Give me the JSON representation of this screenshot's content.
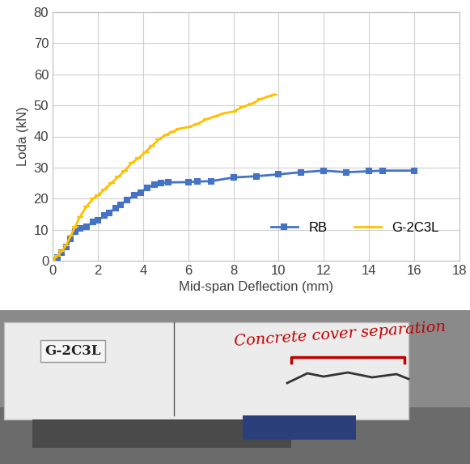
{
  "chart_data": {
    "type": "line",
    "x_label": "Mid-span Deflection (mm)",
    "y_label": "Loda (kN)",
    "xlim": [
      0,
      18
    ],
    "xticks": [
      0,
      2,
      4,
      6,
      8,
      10,
      12,
      14,
      16,
      18
    ],
    "ylim": [
      0,
      80
    ],
    "yticks": [
      0,
      10,
      20,
      30,
      40,
      50,
      60,
      70,
      80
    ],
    "grid": true,
    "legend": "lower right",
    "series": [
      {
        "name": "RB",
        "color": "#4472c4",
        "marker": "square",
        "line_style": "solid",
        "x": [
          0,
          0.2,
          0.4,
          0.6,
          0.8,
          1.0,
          1.2,
          1.5,
          1.8,
          2.0,
          2.3,
          2.5,
          2.8,
          3.0,
          3.3,
          3.6,
          3.9,
          4.2,
          4.5,
          4.8,
          5.1,
          6.0,
          6.4,
          7.0,
          8.0,
          9.0,
          10.0,
          11.0,
          12.0,
          13.0,
          14.0,
          14.6,
          16.0
        ],
        "values": [
          0,
          1,
          2.5,
          4.5,
          7,
          9.5,
          10.5,
          11,
          12.5,
          13,
          14.5,
          15.5,
          17,
          18,
          19.5,
          21,
          22,
          23.5,
          24.5,
          25,
          25.2,
          25.3,
          25.5,
          25.6,
          26.8,
          27.2,
          27.8,
          28.5,
          29,
          28.5,
          28.8,
          29,
          29
        ]
      },
      {
        "name": "G-2C3L",
        "color": "#ffc000",
        "marker": "dash",
        "line_style": "solid",
        "x": [
          0,
          0.2,
          0.4,
          0.6,
          0.8,
          1.0,
          1.2,
          1.5,
          1.8,
          2.0,
          2.3,
          2.6,
          2.9,
          3.2,
          3.5,
          3.8,
          4.1,
          4.4,
          4.7,
          5.0,
          5.3,
          5.6,
          6.0,
          6.4,
          6.8,
          7.2,
          7.6,
          8.0,
          8.4,
          8.8,
          9.2,
          9.6,
          9.8
        ],
        "values": [
          0,
          1.5,
          3,
          5,
          8,
          11,
          14,
          17.5,
          20,
          21,
          23,
          25,
          27,
          29,
          31.5,
          33,
          35,
          37,
          39,
          40.5,
          41.5,
          42.5,
          43,
          44,
          45.5,
          46.5,
          47.5,
          48,
          49.5,
          50.5,
          52,
          53,
          53.5
        ]
      }
    ]
  },
  "photo": {
    "specimen_label": "G-2C3L",
    "annotation": "Concrete cover separation"
  }
}
